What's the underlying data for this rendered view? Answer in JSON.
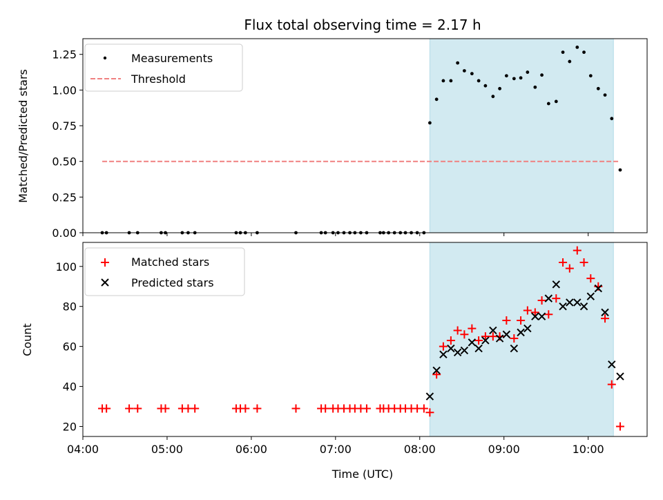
{
  "figure": {
    "title": "Flux total observing time = 2.17 h"
  },
  "chart_data": [
    {
      "type": "scatter",
      "panel": "top",
      "title": "Flux total observing time = 2.17 h",
      "xlabel": "",
      "ylabel": "Matched/Predicted stars",
      "x_unit": "hours (UTC)",
      "xlim": [
        4.0,
        10.7
      ],
      "ylim": [
        0.0,
        1.36
      ],
      "yticks": [
        0.0,
        0.25,
        0.5,
        0.75,
        1.0,
        1.25
      ],
      "ytick_labels": [
        "0.00",
        "0.25",
        "0.50",
        "0.75",
        "1.00",
        "1.25"
      ],
      "xticks": [
        4,
        5,
        6,
        7,
        8,
        9,
        10
      ],
      "shaded_region": {
        "x_start": 8.12,
        "x_end": 10.3,
        "color": "#add8e6"
      },
      "legend": {
        "location": "upper-left",
        "entries": [
          {
            "label": "Measurements",
            "style": "dot",
            "color": "#000000"
          },
          {
            "label": "Threshold",
            "style": "dashed-line",
            "color": "#f08080"
          }
        ]
      },
      "threshold": {
        "name": "Threshold",
        "value": 0.5,
        "x_range": [
          4.23,
          10.38
        ],
        "color": "#f08080"
      },
      "series": [
        {
          "name": "Measurements",
          "color": "#000000",
          "points": [
            [
              4.23,
              0
            ],
            [
              4.28,
              0
            ],
            [
              4.55,
              0
            ],
            [
              4.65,
              0
            ],
            [
              4.93,
              0
            ],
            [
              4.98,
              0
            ],
            [
              5.18,
              0
            ],
            [
              5.25,
              0
            ],
            [
              5.33,
              0
            ],
            [
              5.82,
              0
            ],
            [
              5.87,
              0
            ],
            [
              5.93,
              0
            ],
            [
              6.07,
              0
            ],
            [
              6.53,
              0
            ],
            [
              6.83,
              0
            ],
            [
              6.88,
              0
            ],
            [
              6.97,
              0
            ],
            [
              7.03,
              0
            ],
            [
              7.1,
              0
            ],
            [
              7.17,
              0
            ],
            [
              7.23,
              0
            ],
            [
              7.3,
              0
            ],
            [
              7.37,
              0
            ],
            [
              7.53,
              0
            ],
            [
              7.57,
              0
            ],
            [
              7.63,
              0
            ],
            [
              7.7,
              0
            ],
            [
              7.77,
              0
            ],
            [
              7.83,
              0
            ],
            [
              7.9,
              0
            ],
            [
              7.97,
              0
            ],
            [
              8.05,
              0
            ],
            [
              8.12,
              0.77
            ],
            [
              8.2,
              0.935
            ],
            [
              8.28,
              1.065
            ],
            [
              8.37,
              1.065
            ],
            [
              8.45,
              1.19
            ],
            [
              8.53,
              1.135
            ],
            [
              8.62,
              1.115
            ],
            [
              8.7,
              1.065
            ],
            [
              8.78,
              1.03
            ],
            [
              8.87,
              0.955
            ],
            [
              8.95,
              1.01
            ],
            [
              9.03,
              1.1
            ],
            [
              9.12,
              1.08
            ],
            [
              9.2,
              1.085
            ],
            [
              9.28,
              1.125
            ],
            [
              9.37,
              1.02
            ],
            [
              9.45,
              1.105
            ],
            [
              9.53,
              0.905
            ],
            [
              9.62,
              0.92
            ],
            [
              9.7,
              1.265
            ],
            [
              9.78,
              1.2
            ],
            [
              9.87,
              1.3
            ],
            [
              9.95,
              1.265
            ],
            [
              10.03,
              1.1
            ],
            [
              10.12,
              1.01
            ],
            [
              10.2,
              0.965
            ],
            [
              10.28,
              0.8
            ],
            [
              10.38,
              0.44
            ]
          ]
        }
      ]
    },
    {
      "type": "scatter",
      "panel": "bottom",
      "xlabel": "Time (UTC)",
      "ylabel": "Count",
      "xlim": [
        4.0,
        10.7
      ],
      "ylim": [
        15,
        112
      ],
      "yticks": [
        20,
        40,
        60,
        80,
        100
      ],
      "ytick_labels": [
        "20",
        "40",
        "60",
        "80",
        "100"
      ],
      "xticks": [
        4,
        5,
        6,
        7,
        8,
        9,
        10
      ],
      "xtick_labels": [
        "04:00",
        "05:00",
        "06:00",
        "07:00",
        "08:00",
        "09:00",
        "10:00"
      ],
      "shaded_region": {
        "x_start": 8.12,
        "x_end": 10.3,
        "color": "#add8e6"
      },
      "legend": {
        "location": "upper-left",
        "entries": [
          {
            "label": "Matched stars",
            "style": "plus",
            "color": "#ff0000"
          },
          {
            "label": "Predicted stars",
            "style": "x",
            "color": "#000000"
          }
        ]
      },
      "series": [
        {
          "name": "Matched stars",
          "marker": "plus",
          "color": "#ff0000",
          "points": [
            [
              4.23,
              29
            ],
            [
              4.28,
              29
            ],
            [
              4.55,
              29
            ],
            [
              4.65,
              29
            ],
            [
              4.93,
              29
            ],
            [
              4.98,
              29
            ],
            [
              5.18,
              29
            ],
            [
              5.25,
              29
            ],
            [
              5.33,
              29
            ],
            [
              5.82,
              29
            ],
            [
              5.87,
              29
            ],
            [
              5.93,
              29
            ],
            [
              6.07,
              29
            ],
            [
              6.53,
              29
            ],
            [
              6.83,
              29
            ],
            [
              6.88,
              29
            ],
            [
              6.97,
              29
            ],
            [
              7.03,
              29
            ],
            [
              7.1,
              29
            ],
            [
              7.17,
              29
            ],
            [
              7.23,
              29
            ],
            [
              7.3,
              29
            ],
            [
              7.37,
              29
            ],
            [
              7.53,
              29
            ],
            [
              7.57,
              29
            ],
            [
              7.63,
              29
            ],
            [
              7.7,
              29
            ],
            [
              7.77,
              29
            ],
            [
              7.83,
              29
            ],
            [
              7.9,
              29
            ],
            [
              7.97,
              29
            ],
            [
              8.05,
              29
            ],
            [
              8.12,
              27
            ],
            [
              8.2,
              46
            ],
            [
              8.28,
              60
            ],
            [
              8.37,
              63
            ],
            [
              8.45,
              68
            ],
            [
              8.53,
              66
            ],
            [
              8.62,
              69
            ],
            [
              8.7,
              63
            ],
            [
              8.78,
              65
            ],
            [
              8.87,
              65
            ],
            [
              8.95,
              65
            ],
            [
              9.03,
              73
            ],
            [
              9.12,
              64
            ],
            [
              9.2,
              73
            ],
            [
              9.28,
              78
            ],
            [
              9.37,
              77
            ],
            [
              9.45,
              83
            ],
            [
              9.53,
              76
            ],
            [
              9.62,
              84
            ],
            [
              9.7,
              102
            ],
            [
              9.78,
              99
            ],
            [
              9.87,
              108
            ],
            [
              9.95,
              102
            ],
            [
              10.03,
              94
            ],
            [
              10.12,
              90
            ],
            [
              10.2,
              74
            ],
            [
              10.28,
              41
            ],
            [
              10.38,
              20
            ]
          ]
        },
        {
          "name": "Predicted stars",
          "marker": "x",
          "color": "#000000",
          "points": [
            [
              8.12,
              35
            ],
            [
              8.2,
              48
            ],
            [
              8.28,
              56
            ],
            [
              8.37,
              59
            ],
            [
              8.45,
              57
            ],
            [
              8.53,
              58
            ],
            [
              8.62,
              62
            ],
            [
              8.7,
              59
            ],
            [
              8.78,
              63
            ],
            [
              8.87,
              68
            ],
            [
              8.95,
              64
            ],
            [
              9.03,
              66
            ],
            [
              9.12,
              59
            ],
            [
              9.2,
              67
            ],
            [
              9.28,
              69
            ],
            [
              9.37,
              75
            ],
            [
              9.45,
              75
            ],
            [
              9.53,
              84
            ],
            [
              9.62,
              91
            ],
            [
              9.7,
              80
            ],
            [
              9.78,
              82
            ],
            [
              9.87,
              82
            ],
            [
              9.95,
              80
            ],
            [
              10.03,
              85
            ],
            [
              10.12,
              89
            ],
            [
              10.2,
              77
            ],
            [
              10.28,
              51
            ],
            [
              10.38,
              45
            ]
          ]
        }
      ]
    }
  ]
}
